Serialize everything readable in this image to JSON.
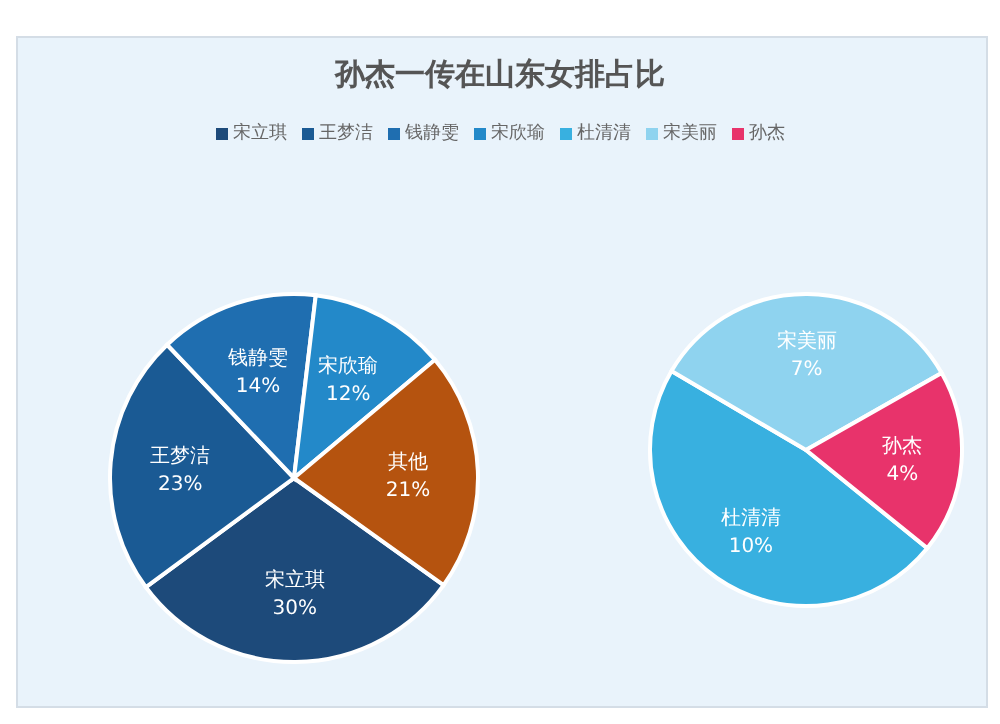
{
  "chart_data": [
    {
      "type": "pie",
      "title": "孙杰一传在山东女排占比",
      "legend": "top",
      "categories": [
        "宋立琪",
        "王梦洁",
        "钱静雯",
        "宋欣瑜",
        "其他"
      ],
      "values": [
        30,
        23,
        14,
        12,
        21
      ],
      "value_labels": [
        "30%",
        "23%",
        "14%",
        "12%",
        "21%"
      ],
      "colors": [
        "#1d4a7a",
        "#1a5a94",
        "#1f6eb0",
        "#2389c9",
        "#b5530f"
      ]
    },
    {
      "type": "pie",
      "legend": "top",
      "categories": [
        "杜清清",
        "宋美丽",
        "孙杰"
      ],
      "values": [
        10,
        7,
        4
      ],
      "value_labels": [
        "10%",
        "7%",
        "4%"
      ],
      "colors": [
        "#38b0e0",
        "#8fd3ef",
        "#e8336b"
      ]
    }
  ]
}
